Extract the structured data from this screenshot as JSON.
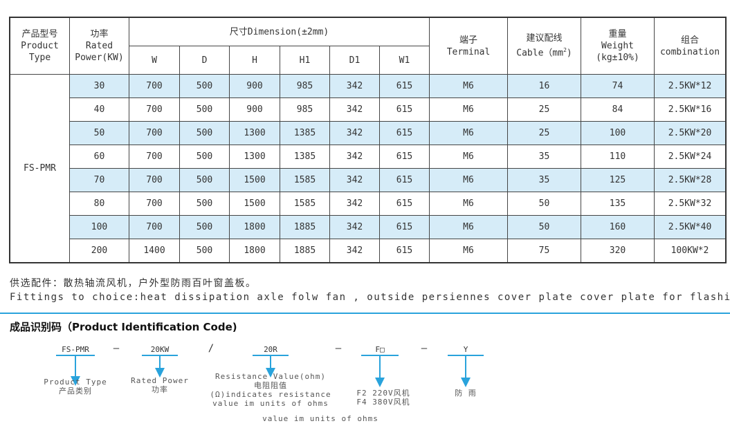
{
  "table": {
    "headers": {
      "product_type": [
        "产品型号",
        "Product",
        "Type"
      ],
      "power": [
        "功率",
        "Rated",
        "Power(KW)"
      ],
      "dimension": "尺寸Dimension(±2mm)",
      "dim_cols": [
        "W",
        "D",
        "H",
        "H1",
        "D1",
        "W1"
      ],
      "terminal": [
        "端子",
        "Terminal"
      ],
      "cable": [
        "建议配线",
        "Cable（mm",
        "2",
        ")"
      ],
      "weight": [
        "重量",
        "Weight",
        "(kg±10%)"
      ],
      "combination": [
        "组合",
        "combination"
      ]
    },
    "model": "FS-PMR",
    "rows": [
      [
        "30",
        "700",
        "500",
        "900",
        "985",
        "342",
        "615",
        "M6",
        "16",
        "74",
        "2.5KW*12"
      ],
      [
        "40",
        "700",
        "500",
        "900",
        "985",
        "342",
        "615",
        "M6",
        "25",
        "84",
        "2.5KW*16"
      ],
      [
        "50",
        "700",
        "500",
        "1300",
        "1385",
        "342",
        "615",
        "M6",
        "25",
        "100",
        "2.5KW*20"
      ],
      [
        "60",
        "700",
        "500",
        "1300",
        "1385",
        "342",
        "615",
        "M6",
        "35",
        "110",
        "2.5KW*24"
      ],
      [
        "70",
        "700",
        "500",
        "1500",
        "1585",
        "342",
        "615",
        "M6",
        "35",
        "125",
        "2.5KW*28"
      ],
      [
        "80",
        "700",
        "500",
        "1500",
        "1585",
        "342",
        "615",
        "M6",
        "50",
        "135",
        "2.5KW*32"
      ],
      [
        "100",
        "700",
        "500",
        "1800",
        "1885",
        "342",
        "615",
        "M6",
        "50",
        "160",
        "2.5KW*40"
      ],
      [
        "200",
        "1400",
        "500",
        "1800",
        "1885",
        "342",
        "615",
        "M6",
        "75",
        "320",
        "100KW*2"
      ]
    ],
    "row_highlight_color": "#d6ecf8"
  },
  "notes": {
    "cn": "供选配件：散热轴流风机，户外型防雨百叶窗盖板。",
    "en": "Fittings to choice:heat dissipation axle folw fan , outside persiennes cover plate cover plate for flashing."
  },
  "code": {
    "title": "成品识别码（Product Identification Code)",
    "accent": "#29a3dc",
    "parts": [
      "FS-PMR",
      "20KW",
      "20R",
      "F□",
      "Y"
    ],
    "separators": [
      "—",
      "/",
      "—",
      "—"
    ],
    "labels": {
      "type": [
        "Product Type",
        "产品类别"
      ],
      "power": [
        "Rated Power",
        "功率"
      ],
      "resistance": [
        "Resistance Value(ohm)",
        "电阻阻值",
        "(Ω)indicates resistance",
        "value im units of ohms"
      ],
      "fan": [
        "F2 220V风机",
        "F4 380V风机"
      ],
      "rain": [
        "防 雨"
      ],
      "extra": "value im units of ohms"
    }
  }
}
